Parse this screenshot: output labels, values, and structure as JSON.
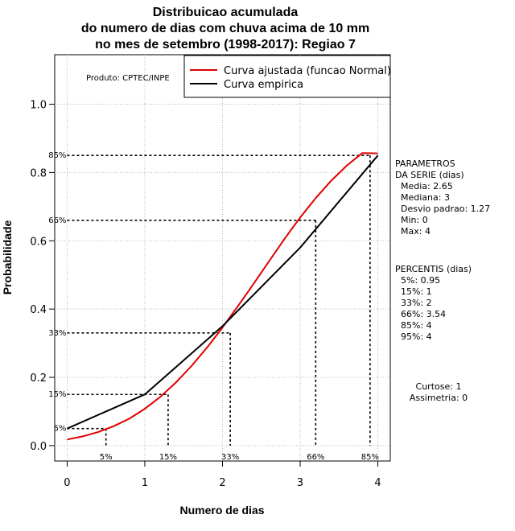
{
  "chart_data": {
    "type": "line",
    "title": [
      "Distribuicao acumulada",
      "do numero de dias com chuva acima de 10 mm",
      "no mes de setembro (1998-2017): Regiao 7"
    ],
    "xlabel": "Numero de dias",
    "ylabel": "Probabilidade",
    "xlim": [
      -0.16,
      4.16
    ],
    "ylim": [
      -0.045,
      1.145
    ],
    "x_ticks": [
      0,
      1,
      2,
      3,
      4
    ],
    "y_ticks": [
      0.0,
      0.2,
      0.4,
      0.6,
      0.8,
      1.0
    ],
    "x_tick_labels": [
      "0",
      "1",
      "2",
      "3",
      "4"
    ],
    "y_tick_labels": [
      "0.0",
      "0.2",
      "0.4",
      "0.6",
      "0.8",
      "1.0"
    ],
    "grid": true,
    "product_label": "Produto: CPTEC/INPE",
    "legend": {
      "position": "top-right",
      "entries": [
        {
          "label": "Curva ajustada (funcao Normal)",
          "color": "#e00000"
        },
        {
          "label": "Curva empirica",
          "color": "#000000"
        }
      ]
    },
    "series": [
      {
        "name": "Curva ajustada (funcao Normal)",
        "color": "#e00000",
        "x": [
          0,
          0.2,
          0.4,
          0.6,
          0.8,
          1.0,
          1.2,
          1.4,
          1.6,
          1.8,
          2.0,
          2.2,
          2.4,
          2.6,
          2.8,
          3.0,
          3.2,
          3.4,
          3.6,
          3.8,
          4.0
        ],
        "y": [
          0.018,
          0.027,
          0.04,
          0.057,
          0.079,
          0.108,
          0.143,
          0.185,
          0.233,
          0.287,
          0.346,
          0.409,
          0.474,
          0.54,
          0.606,
          0.668,
          0.725,
          0.776,
          0.82,
          0.857,
          0.856
        ]
      },
      {
        "name": "Curva empirica",
        "color": "#000000",
        "x": [
          0,
          1,
          2,
          3,
          4
        ],
        "y": [
          0.05,
          0.15,
          0.35,
          0.58,
          0.85
        ]
      }
    ],
    "percentile_guides": [
      {
        "label": "5%",
        "x": 0.5,
        "y": 0.05
      },
      {
        "label": "15%",
        "x": 1.3,
        "y": 0.15
      },
      {
        "label": "33%",
        "x": 2.1,
        "y": 0.33
      },
      {
        "label": "66%",
        "x": 3.2,
        "y": 0.66
      },
      {
        "label": "85%",
        "x": 3.9,
        "y": 0.85
      }
    ],
    "parametros": {
      "heading": [
        "PARAMETROS",
        "DA SERIE (dias)"
      ],
      "lines": [
        "Media: 2.65",
        "Mediana: 3",
        "Desvio padrao: 1.27",
        "Min: 0",
        "Max: 4"
      ]
    },
    "percentis": {
      "heading": "PERCENTIS (dias)",
      "lines": [
        "5%: 0.95",
        "15%: 1",
        "33%: 2",
        "66%: 3.54",
        "85%: 4",
        "95%: 4"
      ]
    },
    "stats": [
      "Curtose: 1",
      "Assimetria: 0"
    ]
  }
}
